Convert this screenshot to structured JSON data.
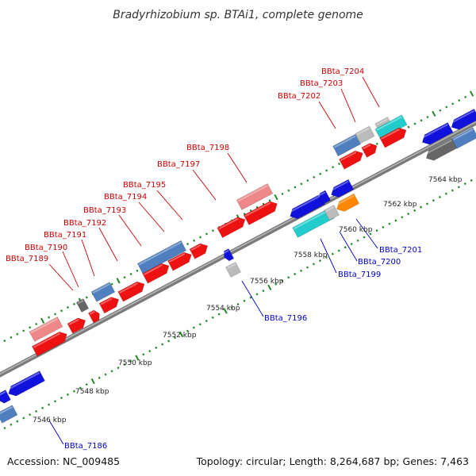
{
  "title": "Bradyrhizobium sp. BTAi1, complete genome",
  "footer": {
    "accession": "Accession: NC_009485",
    "topology": "Topology: circular; Length: 8,264,687 bp; Genes: 7,463"
  },
  "colors": {
    "red": "#ee1111",
    "pink": "#ee8888",
    "steelblue": "#4f7fbf",
    "blue": "#1111dd",
    "cyan": "#22cccc",
    "gray": "#bbbbbb",
    "darkgray": "#666666",
    "orange": "#ff8800",
    "label_red": "#cc0000",
    "label_blue": "#0000cc",
    "tick_green": "#228822",
    "backbone": "#808080"
  },
  "scale_labels": [
    "7546 kbp",
    "7548 kbp",
    "7550 kbp",
    "7552 kbp",
    "7554 kbp",
    "7556 kbp",
    "7558 kbp",
    "7560 kbp",
    "7562 kbp",
    "7564 kbp"
  ],
  "top_labels": [
    "BBta_7189",
    "BBta_7190",
    "BBta_7191",
    "BBta_7192",
    "BBta_7193",
    "BBta_7194",
    "BBta_7195",
    "BBta_7197",
    "BBta_7198",
    "BBta_7202",
    "BBta_7203",
    "BBta_7204"
  ],
  "bottom_labels": [
    "BBta_7186",
    "BBta_7196",
    "BBta_7199",
    "BBta_7200",
    "BBta_7201"
  ]
}
